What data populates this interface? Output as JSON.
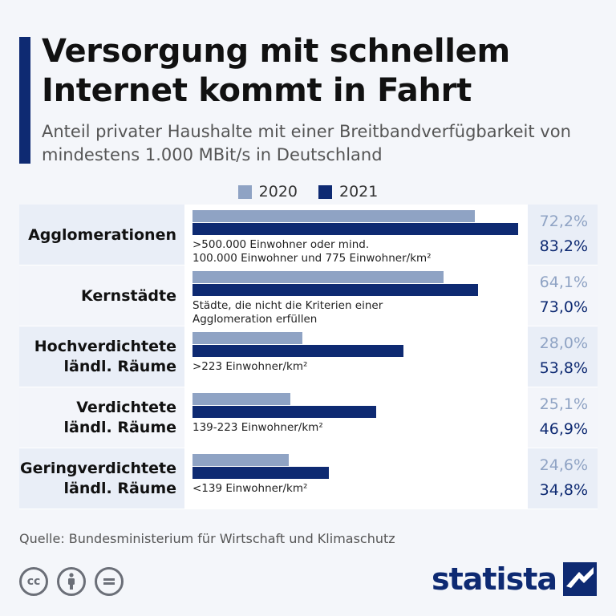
{
  "header": {
    "title": "Versorgung mit schnellem Internet kommt in Fahrt",
    "subtitle": "Anteil privater Haushalte mit einer Breitbandverfügbarkeit von mindestens 1.000 MBit/s in Deutschland"
  },
  "colors": {
    "y2020": "#8fa3c4",
    "y2021": "#0e2a72",
    "accent": "#0e2a72"
  },
  "chart_data": {
    "type": "bar",
    "orientation": "horizontal",
    "categories": [
      "Agglomerationen",
      "Kernstädte",
      "Hochverdichtete ländl. Räume",
      "Verdichtete ländl. Räume",
      "Geringverdichtete ländl. Räume"
    ],
    "category_notes": [
      ">500.000 Einwohner oder mind. 100.000 Einwohner und 775 Einwohner/km²",
      "Städte, die nicht die Kriterien einer Agglomeration erfüllen",
      ">223 Einwohner/km²",
      "139-223 Einwohner/km²",
      "<139 Einwohner/km²"
    ],
    "series": [
      {
        "name": "2020",
        "values": [
          72.2,
          64.1,
          28.0,
          25.1,
          24.6
        ],
        "labels": [
          "72,2%",
          "64,1%",
          "28,0%",
          "25,1%",
          "24,6%"
        ]
      },
      {
        "name": "2021",
        "values": [
          83.2,
          73.0,
          53.8,
          46.9,
          34.8
        ],
        "labels": [
          "83,2%",
          "73,0%",
          "53,8%",
          "46,9%",
          "34,8%"
        ]
      }
    ],
    "xlim": [
      0,
      100
    ],
    "legend_position": "top-center",
    "grid": false
  },
  "rows": [
    {
      "label_lines": [
        "Agglomerationen"
      ],
      "note_lines": [
        ">500.000 Einwohner oder mind.",
        "100.000 Einwohner und 775 Einwohner/km²"
      ]
    },
    {
      "label_lines": [
        "Kernstädte"
      ],
      "note_lines": [
        "Städte, die nicht die Kriterien einer",
        "Agglomeration erfüllen"
      ]
    },
    {
      "label_lines": [
        "Hochverdichtete",
        "ländl. Räume"
      ],
      "note_lines": [
        ">223 Einwohner/km²"
      ]
    },
    {
      "label_lines": [
        "Verdichtete",
        "ländl. Räume"
      ],
      "note_lines": [
        "139-223 Einwohner/km²"
      ]
    },
    {
      "label_lines": [
        "Geringverdichtete",
        "ländl. Räume"
      ],
      "note_lines": [
        "<139 Einwohner/km²"
      ]
    }
  ],
  "footer": {
    "source": "Quelle: Bundesministerium für Wirtschaft und Klimaschutz",
    "license_icons": [
      "cc-icon",
      "attribution-icon",
      "no-derivatives-icon"
    ],
    "brand": "statista"
  }
}
